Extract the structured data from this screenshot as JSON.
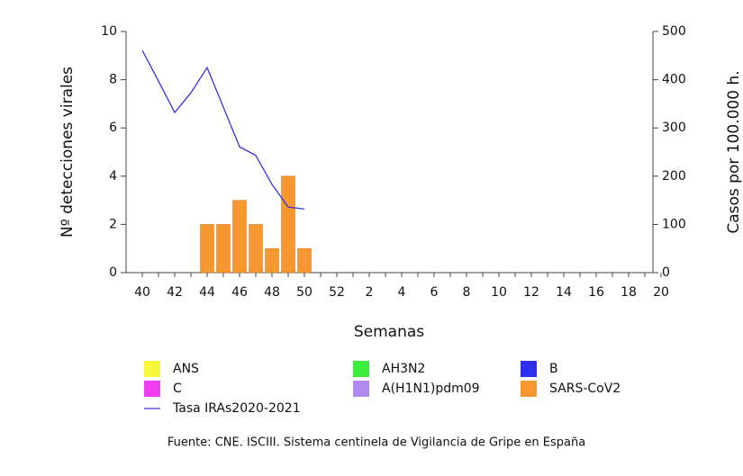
{
  "chart_data": {
    "type": "bar",
    "x_label": "Semanas",
    "y_label": "Nº detecciones virales",
    "y2_label": "Casos por 100.000 h.",
    "source": "Fuente: CNE. ISCIII. Sistema centinela de Vigilancia de Gripe en España",
    "categories": [
      "40",
      null,
      "42",
      null,
      "44",
      null,
      "46",
      null,
      "48",
      null,
      "50",
      null,
      "52",
      null,
      "2",
      null,
      "4",
      null,
      "6",
      null,
      "8",
      null,
      "10",
      null,
      "12",
      null,
      "14",
      null,
      "16",
      null,
      "18",
      null,
      "20"
    ],
    "ylim": [
      0,
      10
    ],
    "yticks": [
      0,
      2,
      4,
      6,
      8,
      10
    ],
    "y2lim": [
      0,
      500
    ],
    "y2ticks": [
      0,
      100,
      200,
      300,
      400,
      500
    ],
    "stacked": true,
    "series": [
      {
        "name": "ANS",
        "color": "#f7f73a",
        "values": [
          0,
          0,
          0,
          0,
          0,
          0,
          0,
          0,
          0,
          0,
          0,
          null,
          null,
          null,
          null,
          null,
          null,
          null,
          null,
          null,
          null,
          null,
          null,
          null,
          null,
          null,
          null,
          null,
          null,
          null,
          null,
          null,
          null
        ]
      },
      {
        "name": "AH3N2",
        "color": "#3cec3c",
        "values": [
          0,
          0,
          0,
          0,
          0,
          0,
          0,
          0,
          0,
          0,
          0,
          null,
          null,
          null,
          null,
          null,
          null,
          null,
          null,
          null,
          null,
          null,
          null,
          null,
          null,
          null,
          null,
          null,
          null,
          null,
          null,
          null,
          null
        ]
      },
      {
        "name": "B",
        "color": "#2f2ff0",
        "values": [
          0,
          0,
          0,
          0,
          0,
          0,
          0,
          0,
          0,
          0,
          0,
          null,
          null,
          null,
          null,
          null,
          null,
          null,
          null,
          null,
          null,
          null,
          null,
          null,
          null,
          null,
          null,
          null,
          null,
          null,
          null,
          null,
          null
        ]
      },
      {
        "name": "C",
        "color": "#f03cf0",
        "values": [
          0,
          0,
          0,
          0,
          0,
          0,
          0,
          0,
          0,
          0,
          0,
          null,
          null,
          null,
          null,
          null,
          null,
          null,
          null,
          null,
          null,
          null,
          null,
          null,
          null,
          null,
          null,
          null,
          null,
          null,
          null,
          null,
          null
        ]
      },
      {
        "name": "A(H1N1)pdm09",
        "color": "#b08af0",
        "values": [
          0,
          0,
          0,
          0,
          0,
          0,
          0,
          0,
          0,
          0,
          0,
          null,
          null,
          null,
          null,
          null,
          null,
          null,
          null,
          null,
          null,
          null,
          null,
          null,
          null,
          null,
          null,
          null,
          null,
          null,
          null,
          null,
          null
        ]
      },
      {
        "name": "SARS-CoV2",
        "color": "#f7972f",
        "values": [
          0,
          0,
          0,
          0,
          2,
          2,
          3,
          2,
          1,
          4,
          1,
          null,
          null,
          null,
          null,
          null,
          null,
          null,
          null,
          null,
          null,
          null,
          null,
          null,
          null,
          null,
          null,
          null,
          null,
          null,
          null,
          null,
          null
        ]
      },
      {
        "name": "Tasa IRAs2020-2021",
        "color": "#3535e0",
        "type": "line",
        "axis": "y2",
        "values": [
          461,
          397,
          332,
          373,
          425,
          343,
          261,
          243,
          183,
          136,
          132,
          null,
          null,
          null,
          null,
          null,
          null,
          null,
          null,
          null,
          null,
          null,
          null,
          null,
          null,
          null,
          null,
          null,
          null,
          null,
          null,
          null,
          null
        ]
      }
    ]
  }
}
